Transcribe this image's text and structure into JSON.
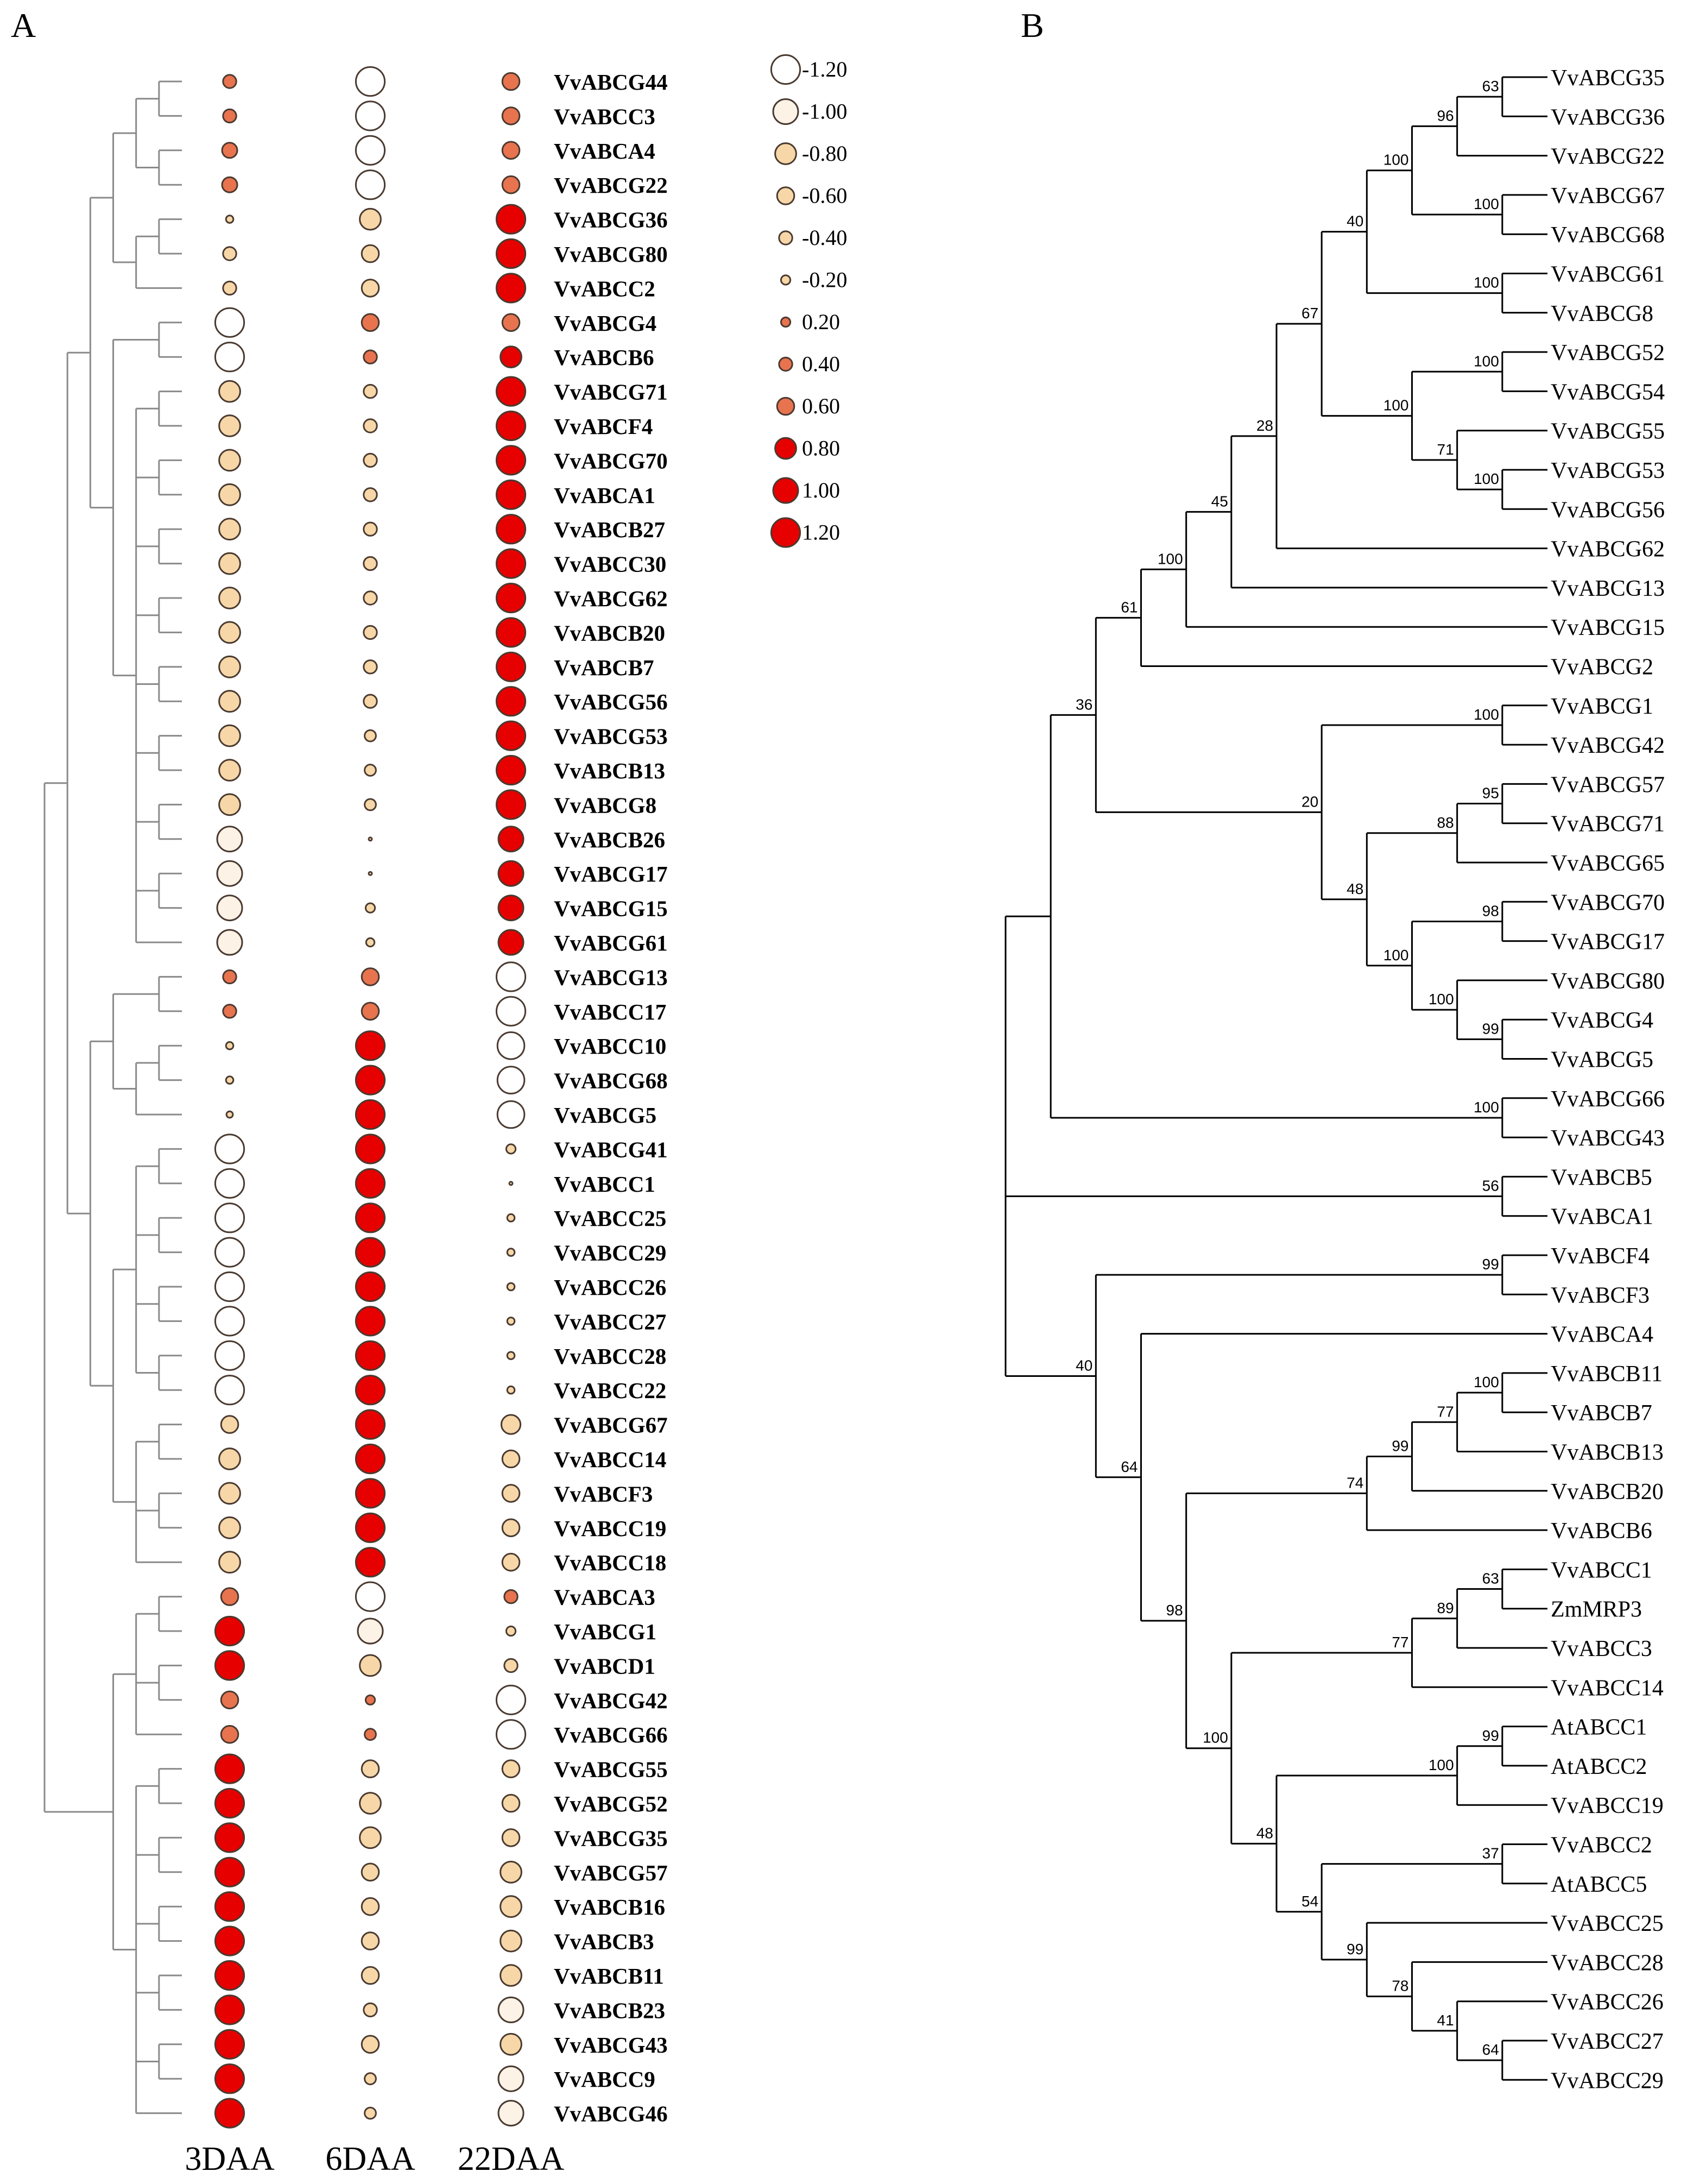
{
  "panelA": {
    "label": "A",
    "columns": [
      "3DAA",
      "6DAA",
      "22DAA"
    ],
    "legend": [
      "-1.20",
      "-1.00",
      "-0.80",
      "-0.60",
      "-0.40",
      "-0.20",
      "0.20",
      "0.40",
      "0.60",
      "0.80",
      "1.00",
      "1.20"
    ],
    "rows": [
      {
        "gene": "VvABCG44",
        "values": [
          0.4,
          -1.2,
          0.6
        ]
      },
      {
        "gene": "VvABCC3",
        "values": [
          0.4,
          -1.2,
          0.6
        ]
      },
      {
        "gene": "VvABCA4",
        "values": [
          0.5,
          -1.2,
          0.6
        ]
      },
      {
        "gene": "VvABCG22",
        "values": [
          0.5,
          -1.2,
          0.6
        ]
      },
      {
        "gene": "VvABCG36",
        "values": [
          -0.1,
          -0.8,
          1.2
        ]
      },
      {
        "gene": "VvABCG80",
        "values": [
          -0.4,
          -0.6,
          1.2
        ]
      },
      {
        "gene": "VvABCC2",
        "values": [
          -0.4,
          -0.6,
          1.2
        ]
      },
      {
        "gene": "VvABCG4",
        "values": [
          -1.2,
          0.6,
          0.6
        ]
      },
      {
        "gene": "VvABCB6",
        "values": [
          -1.2,
          0.4,
          0.8
        ]
      },
      {
        "gene": "VvABCG71",
        "values": [
          -0.8,
          -0.4,
          1.2
        ]
      },
      {
        "gene": "VvABCF4",
        "values": [
          -0.8,
          -0.4,
          1.2
        ]
      },
      {
        "gene": "VvABCG70",
        "values": [
          -0.8,
          -0.4,
          1.2
        ]
      },
      {
        "gene": "VvABCA1",
        "values": [
          -0.8,
          -0.4,
          1.2
        ]
      },
      {
        "gene": "VvABCB27",
        "values": [
          -0.8,
          -0.4,
          1.2
        ]
      },
      {
        "gene": "VvABCC30",
        "values": [
          -0.8,
          -0.4,
          1.2
        ]
      },
      {
        "gene": "VvABCG62",
        "values": [
          -0.8,
          -0.4,
          1.2
        ]
      },
      {
        "gene": "VvABCB20",
        "values": [
          -0.8,
          -0.4,
          1.2
        ]
      },
      {
        "gene": "VvABCB7",
        "values": [
          -0.8,
          -0.4,
          1.2
        ]
      },
      {
        "gene": "VvABCG56",
        "values": [
          -0.8,
          -0.4,
          1.2
        ]
      },
      {
        "gene": "VvABCG53",
        "values": [
          -0.8,
          -0.3,
          1.2
        ]
      },
      {
        "gene": "VvABCB13",
        "values": [
          -0.8,
          -0.3,
          1.2
        ]
      },
      {
        "gene": "VvABCG8",
        "values": [
          -0.8,
          -0.3,
          1.2
        ]
      },
      {
        "gene": "VvABCB26",
        "values": [
          -1.0,
          0.0,
          1.0
        ]
      },
      {
        "gene": "VvABCG17",
        "values": [
          -1.0,
          0.0,
          1.0
        ]
      },
      {
        "gene": "VvABCG15",
        "values": [
          -1.0,
          -0.2,
          1.0
        ]
      },
      {
        "gene": "VvABCG61",
        "values": [
          -1.0,
          -0.15,
          1.0
        ]
      },
      {
        "gene": "VvABCG13",
        "values": [
          0.4,
          0.6,
          -1.2
        ]
      },
      {
        "gene": "VvABCC17",
        "values": [
          0.4,
          0.6,
          -1.2
        ]
      },
      {
        "gene": "VvABCC10",
        "values": [
          -0.1,
          1.2,
          -1.1
        ]
      },
      {
        "gene": "VvABCG68",
        "values": [
          -0.1,
          1.2,
          -1.1
        ]
      },
      {
        "gene": "VvABCG5",
        "values": [
          -0.05,
          1.2,
          -1.1
        ]
      },
      {
        "gene": "VvABCG41",
        "values": [
          -1.2,
          1.2,
          -0.2
        ]
      },
      {
        "gene": "VvABCC1",
        "values": [
          -1.2,
          1.2,
          0.0
        ]
      },
      {
        "gene": "VvABCC25",
        "values": [
          -1.2,
          1.2,
          -0.1
        ]
      },
      {
        "gene": "VvABCC29",
        "values": [
          -1.2,
          1.2,
          -0.1
        ]
      },
      {
        "gene": "VvABCC26",
        "values": [
          -1.2,
          1.2,
          -0.1
        ]
      },
      {
        "gene": "VvABCC27",
        "values": [
          -1.2,
          1.2,
          -0.1
        ]
      },
      {
        "gene": "VvABCC28",
        "values": [
          -1.2,
          1.2,
          -0.1
        ]
      },
      {
        "gene": "VvABCC22",
        "values": [
          -1.2,
          1.2,
          -0.1
        ]
      },
      {
        "gene": "VvABCG67",
        "values": [
          -0.6,
          1.2,
          -0.7
        ]
      },
      {
        "gene": "VvABCC14",
        "values": [
          -0.8,
          1.2,
          -0.6
        ]
      },
      {
        "gene": "VvABCF3",
        "values": [
          -0.8,
          1.2,
          -0.6
        ]
      },
      {
        "gene": "VvABCC19",
        "values": [
          -0.8,
          1.2,
          -0.6
        ]
      },
      {
        "gene": "VvABCC18",
        "values": [
          -0.8,
          1.2,
          -0.6
        ]
      },
      {
        "gene": "VvABCA3",
        "values": [
          0.6,
          -1.2,
          0.4
        ]
      },
      {
        "gene": "VvABCG1",
        "values": [
          1.2,
          -1.0,
          -0.2
        ]
      },
      {
        "gene": "VvABCD1",
        "values": [
          1.2,
          -0.8,
          -0.4
        ]
      },
      {
        "gene": "VvABCG42",
        "values": [
          0.6,
          0.2,
          -1.2
        ]
      },
      {
        "gene": "VvABCG66",
        "values": [
          0.6,
          0.3,
          -1.2
        ]
      },
      {
        "gene": "VvABCG55",
        "values": [
          1.2,
          -0.6,
          -0.6
        ]
      },
      {
        "gene": "VvABCG52",
        "values": [
          1.2,
          -0.8,
          -0.6
        ]
      },
      {
        "gene": "VvABCG35",
        "values": [
          1.2,
          -0.8,
          -0.6
        ]
      },
      {
        "gene": "VvABCG57",
        "values": [
          1.2,
          -0.6,
          -0.8
        ]
      },
      {
        "gene": "VvABCB16",
        "values": [
          1.2,
          -0.6,
          -0.8
        ]
      },
      {
        "gene": "VvABCB3",
        "values": [
          1.2,
          -0.6,
          -0.8
        ]
      },
      {
        "gene": "VvABCB11",
        "values": [
          1.2,
          -0.6,
          -0.8
        ]
      },
      {
        "gene": "VvABCB23",
        "values": [
          1.2,
          -0.4,
          -1.0
        ]
      },
      {
        "gene": "VvABCG43",
        "values": [
          1.2,
          -0.6,
          -0.8
        ]
      },
      {
        "gene": "VvABCC9",
        "values": [
          1.2,
          -0.3,
          -1.0
        ]
      },
      {
        "gene": "VvABCG46",
        "values": [
          1.2,
          -0.3,
          -1.0
        ]
      }
    ]
  },
  "panelB": {
    "label": "B",
    "tree": [
      "",
      [
        "",
        [
          "36",
          [
            "61",
            [
              "100",
              [
                "45",
                [
                  "28",
                  [
                    "67",
                    [
                      "40",
                      [
                        "100",
                        [
                          "96",
                          [
                            "63",
                            "VvABCG35",
                            "VvABCG36"
                          ],
                          "VvABCG22"
                        ],
                        [
                          "100",
                          "VvABCG67",
                          "VvABCG68"
                        ]
                      ],
                      [
                        "100",
                        "VvABCG61",
                        "VvABCG8"
                      ]
                    ],
                    [
                      "100",
                      [
                        "100",
                        "VvABCG52",
                        "VvABCG54"
                      ],
                      [
                        "71",
                        "VvABCG55",
                        [
                          "100",
                          "VvABCG53",
                          "VvABCG56"
                        ]
                      ]
                    ]
                  ],
                  "VvABCG62"
                ],
                "VvABCG13"
              ],
              "VvABCG15"
            ],
            "VvABCG2"
          ],
          [
            "20",
            [
              "100",
              "VvABCG1",
              "VvABCG42"
            ],
            [
              "48",
              [
                "88",
                [
                  "95",
                  "VvABCG57",
                  "VvABCG71"
                ],
                "VvABCG65"
              ],
              [
                "100",
                [
                  "98",
                  "VvABCG70",
                  "VvABCG17"
                ],
                [
                  "100",
                  "VvABCG80",
                  [
                    "99",
                    "VvABCG4",
                    "VvABCG5"
                  ]
                ]
              ]
            ]
          ]
        ],
        [
          "100",
          "VvABCG66",
          "VvABCG43"
        ]
      ],
      [
        "56",
        "VvABCB5",
        "VvABCA1"
      ],
      [
        "40",
        [
          "99",
          "VvABCF4",
          "VvABCF3"
        ],
        [
          "64",
          "VvABCA4",
          [
            "98",
            [
              "74",
              [
                "99",
                [
                  "77",
                  [
                    "100",
                    "VvABCB11",
                    "VvABCB7"
                  ],
                  "VvABCB13"
                ],
                "VvABCB20"
              ],
              "VvABCB6"
            ],
            [
              "100",
              [
                "77",
                [
                  "89",
                  [
                    "63",
                    "VvABCC1",
                    "ZmMRP3"
                  ],
                  "VvABCC3"
                ],
                "VvABCC14"
              ],
              [
                "48",
                [
                  "100",
                  [
                    "99",
                    "AtABCC1",
                    "AtABCC2"
                  ],
                  "VvABCC19"
                ],
                [
                  "54",
                  [
                    "37",
                    "VvABCC2",
                    "AtABCC5"
                  ],
                  [
                    "99",
                    "VvABCC25",
                    [
                      "78",
                      "VvABCC28",
                      [
                        "41",
                        "VvABCC26",
                        [
                          "64",
                          "VvABCC27",
                          "VvABCC29"
                        ]
                      ]
                    ]
                  ]
                ]
              ]
            ]
          ]
        ]
      ]
    ]
  },
  "colors": {
    "stroke_dendro": "#8a8a8a",
    "stroke_tree": "#000000",
    "high": "#e60000",
    "mid": "#e8734f",
    "low": "#f7d7a8",
    "lowest": "#fdf2e6"
  }
}
